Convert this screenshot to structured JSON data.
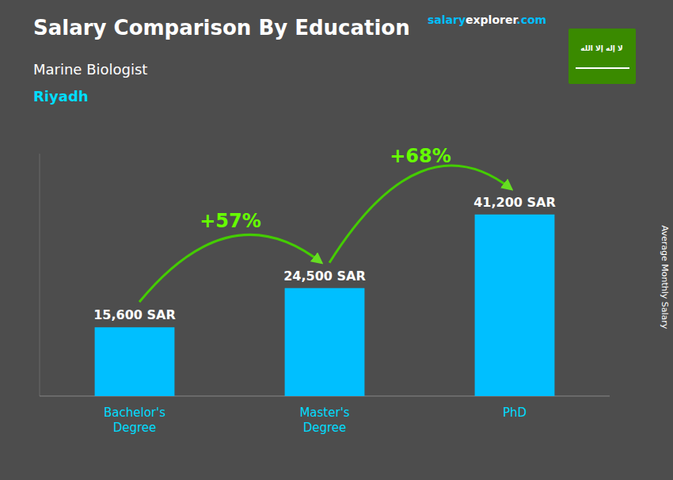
{
  "chart_data": {
    "type": "bar",
    "title": "Salary Comparison By Education",
    "subtitle": [
      "Marine Biologist",
      "Riyadh"
    ],
    "ylabel": "Average Monthly Salary",
    "categories": [
      "Bachelor's\nDegree",
      "Master's\nDegree",
      "PhD"
    ],
    "values": [
      15600,
      24500,
      41200
    ],
    "value_labels": [
      "15,600 SAR",
      "24,500 SAR",
      "41,200 SAR"
    ],
    "data_labels": true,
    "color": "#00BFFF",
    "ylim": [
      0,
      55000
    ],
    "tick_labels": "x",
    "grid": false,
    "annotations": {
      "changes": [
        "+57%",
        "+68%"
      ],
      "watermark": [
        "salary",
        "explorer",
        ".com"
      ],
      "flag": "لا إله إلا الله"
    }
  }
}
